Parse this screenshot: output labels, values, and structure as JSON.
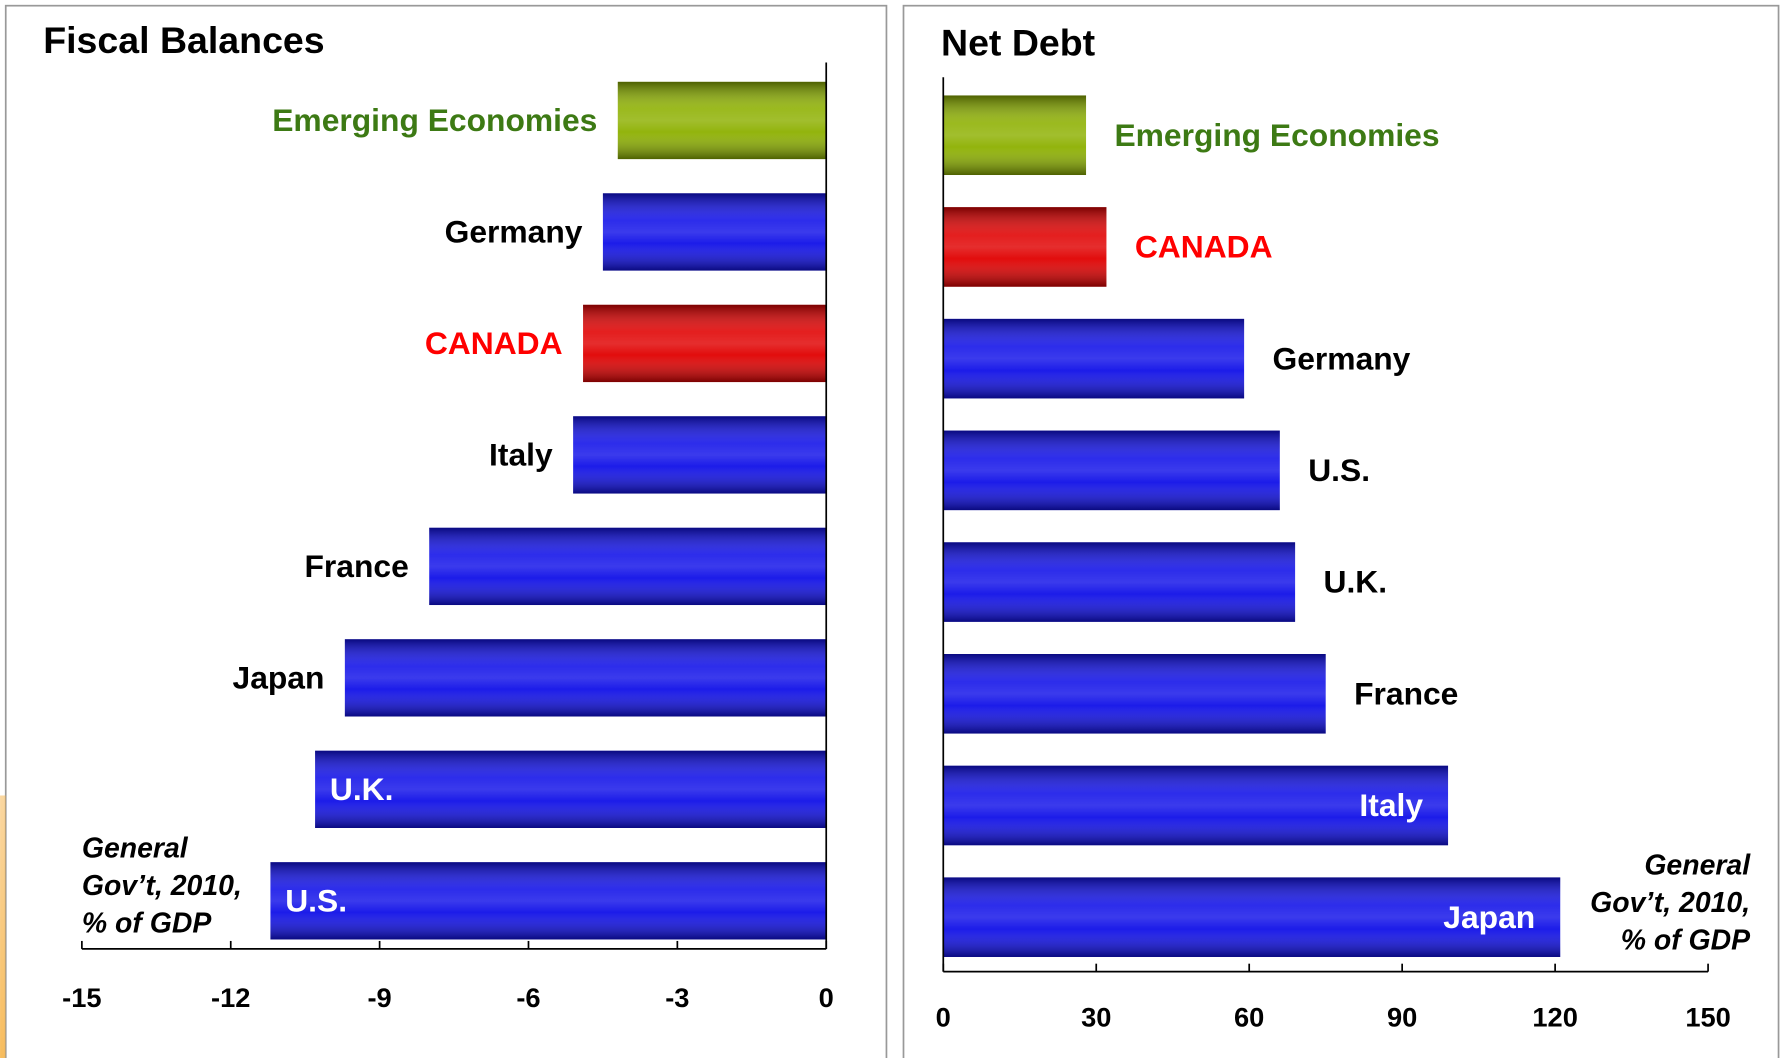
{
  "chart_data": [
    {
      "type": "bar",
      "orientation": "horizontal",
      "title": "Fiscal Balances",
      "categories": [
        "Emerging Economies",
        "Germany",
        "CANADA",
        "Italy",
        "France",
        "Japan",
        "U.K.",
        "U.S."
      ],
      "values": [
        -4.2,
        -4.5,
        -4.9,
        -5.1,
        -8.0,
        -9.7,
        -10.3,
        -11.2
      ],
      "colors": [
        "#8db000",
        "#1010e8",
        "#e00000",
        "#1010e8",
        "#1010e8",
        "#1010e8",
        "#1010e8",
        "#1010e8"
      ],
      "label_colors": [
        "#3d7a14",
        "#000000",
        "#ff0000",
        "#000000",
        "#000000",
        "#000000",
        "#ffffff",
        "#ffffff"
      ],
      "xlim": [
        -15,
        0
      ],
      "xticks": [
        -15,
        -12,
        -9,
        -6,
        -3,
        0
      ],
      "note": [
        "General",
        "Gov’t, 2010,",
        "% of GDP"
      ]
    },
    {
      "type": "bar",
      "orientation": "horizontal",
      "title": "Net Debt",
      "categories": [
        "Emerging Economies",
        "CANADA",
        "Germany",
        "U.S.",
        "U.K.",
        "France",
        "Italy",
        "Japan"
      ],
      "values": [
        28,
        32,
        59,
        66,
        69,
        75,
        99,
        121
      ],
      "colors": [
        "#8db000",
        "#e00000",
        "#1010e8",
        "#1010e8",
        "#1010e8",
        "#1010e8",
        "#1010e8",
        "#1010e8"
      ],
      "label_colors": [
        "#3d7a14",
        "#ff0000",
        "#000000",
        "#000000",
        "#000000",
        "#000000",
        "#ffffff",
        "#ffffff"
      ],
      "xlim": [
        0,
        150
      ],
      "xticks": [
        0,
        30,
        60,
        90,
        120,
        150
      ],
      "note": [
        "General",
        "Gov’t, 2010,",
        "% of GDP"
      ]
    }
  ]
}
